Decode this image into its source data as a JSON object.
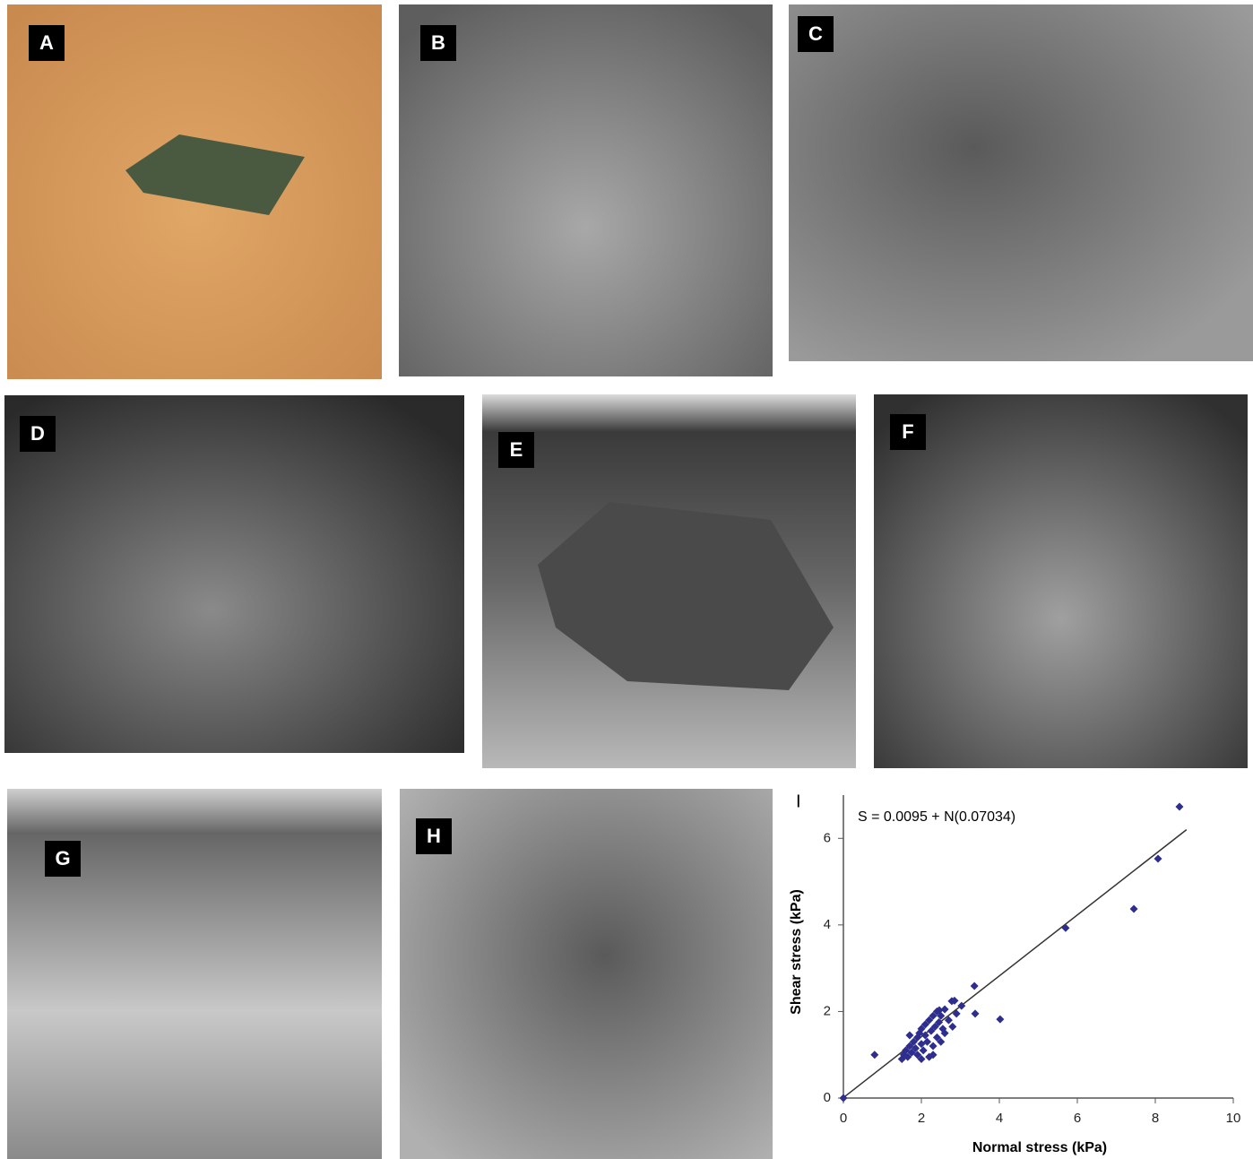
{
  "panels": [
    "A",
    "B",
    "C",
    "D",
    "E",
    "F",
    "G",
    "H"
  ],
  "chart_data": {
    "type": "scatter",
    "label": "I",
    "annotation": "S = 0.0095 + N(0.07034)",
    "xlabel": "Normal stress (kPa)",
    "ylabel": "Shear stress (kPa)",
    "xlim": [
      0,
      10
    ],
    "ylim": [
      0,
      7
    ],
    "xticks": [
      0,
      2,
      4,
      6,
      8,
      10
    ],
    "yticks": [
      0,
      2,
      4,
      6
    ],
    "color": "#2e2e8f",
    "x": [
      0,
      0.8,
      8.62,
      8.07,
      7.45,
      5.7,
      4.02,
      3.36,
      3.38,
      3.03,
      2.78,
      2.46,
      1.5,
      1.55,
      1.6,
      1.65,
      1.7,
      1.75,
      1.8,
      1.85,
      1.9,
      1.9,
      1.95,
      2.0,
      2.0,
      2.05,
      2.1,
      2.1,
      2.15,
      2.2,
      2.2,
      2.25,
      2.3,
      2.3,
      2.35,
      2.4,
      2.4,
      2.45,
      2.5,
      2.5,
      2.55,
      2.6,
      2.7,
      2.8,
      2.85,
      2.9,
      2.3,
      2.0,
      1.7,
      2.6
    ],
    "values": [
      0,
      1.0,
      6.73,
      5.53,
      4.37,
      3.93,
      1.82,
      2.59,
      1.95,
      2.13,
      2.24,
      2.03,
      0.9,
      1.0,
      1.1,
      0.95,
      1.2,
      1.05,
      1.3,
      1.15,
      1.4,
      1.0,
      1.5,
      1.25,
      1.6,
      1.1,
      1.45,
      1.7,
      1.3,
      1.8,
      0.95,
      1.55,
      1.2,
      1.9,
      1.65,
      1.4,
      2.0,
      1.75,
      1.3,
      1.9,
      1.6,
      1.5,
      1.8,
      1.65,
      2.25,
      1.95,
      1.0,
      0.9,
      1.45,
      2.05
    ],
    "fit_line": {
      "x": [
        0,
        8.8
      ],
      "y": [
        0.0095,
        6.2
      ]
    }
  }
}
